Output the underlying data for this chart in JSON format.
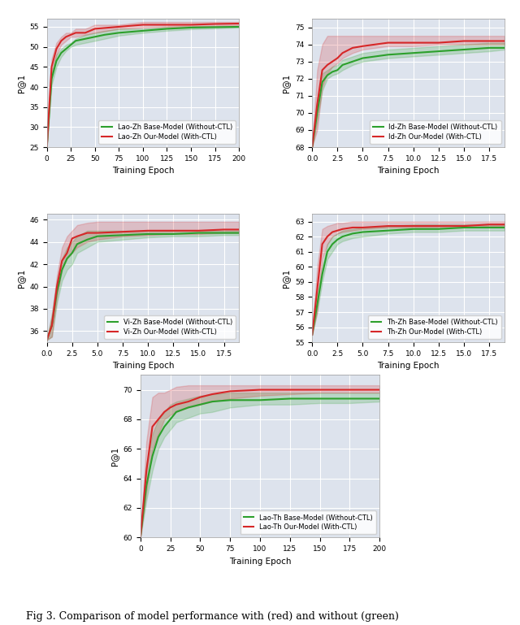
{
  "background_color": "#dde3ed",
  "green_color": "#2ca02c",
  "red_color": "#d62728",
  "fill_alpha": 0.2,
  "line_width": 1.5,
  "caption": "Fig 3. Comparison of model performance with (red) and without (green)",
  "subplots": [
    {
      "xlabel": "Training Epoch",
      "ylabel": "P@1",
      "legend_green": "Lao-Zh Base-Model (Without-CTL)",
      "legend_red": "Lao-Zh Our-Model (With-CTL)",
      "x_max": 200,
      "x_ticks": [
        0,
        25,
        50,
        75,
        100,
        125,
        150,
        175,
        200
      ],
      "ylim": [
        25,
        57
      ],
      "y_ticks": [
        25,
        30,
        35,
        40,
        45,
        50,
        55
      ],
      "green_x": [
        0,
        5,
        10,
        15,
        20,
        25,
        30,
        40,
        50,
        60,
        75,
        100,
        125,
        150,
        175,
        200
      ],
      "green_y": [
        25.0,
        42.0,
        46.5,
        48.5,
        49.5,
        50.5,
        51.5,
        52.0,
        52.5,
        53.0,
        53.5,
        54.0,
        54.5,
        54.8,
        54.9,
        55.0
      ],
      "green_lower": [
        25.0,
        40.5,
        45.0,
        47.5,
        49.0,
        50.0,
        50.5,
        51.0,
        51.5,
        52.0,
        52.8,
        53.5,
        54.0,
        54.4,
        54.6,
        54.8
      ],
      "green_upper": [
        25.0,
        43.5,
        48.0,
        49.5,
        50.5,
        51.0,
        52.0,
        53.0,
        53.5,
        54.0,
        54.5,
        54.5,
        55.0,
        55.2,
        55.2,
        55.2
      ],
      "red_x": [
        0,
        5,
        10,
        15,
        20,
        25,
        30,
        40,
        50,
        75,
        100,
        125,
        150,
        175,
        200
      ],
      "red_y": [
        25.0,
        45.0,
        49.5,
        51.5,
        52.5,
        53.0,
        53.5,
        53.5,
        54.5,
        55.0,
        55.5,
        55.5,
        55.5,
        55.7,
        55.8
      ],
      "red_lower": [
        25.0,
        43.0,
        48.0,
        50.5,
        51.5,
        52.5,
        52.5,
        53.0,
        53.5,
        54.5,
        54.8,
        55.0,
        55.0,
        55.2,
        55.4
      ],
      "red_upper": [
        25.0,
        47.0,
        51.0,
        52.5,
        53.5,
        53.5,
        54.5,
        54.5,
        55.5,
        55.5,
        56.2,
        56.2,
        56.2,
        56.2,
        56.2
      ]
    },
    {
      "xlabel": "Training Epoch",
      "ylabel": "P@1",
      "legend_green": "Id-Zh Base-Model (Without-CTL)",
      "legend_red": "Id-Zh Our-Model (With-CTL)",
      "x_max": 19,
      "x_ticks": [
        0.0,
        2.5,
        5.0,
        7.5,
        10.0,
        12.5,
        15.0,
        17.5
      ],
      "ylim": [
        68,
        75.5
      ],
      "y_ticks": [
        68,
        69,
        70,
        71,
        72,
        73,
        74,
        75
      ],
      "green_x": [
        0,
        0.5,
        1.0,
        1.5,
        2.0,
        2.5,
        3.0,
        4.0,
        5.0,
        7.5,
        10.0,
        12.5,
        15.0,
        17.5,
        19.0
      ],
      "green_y": [
        68.0,
        70.0,
        71.8,
        72.2,
        72.4,
        72.5,
        72.8,
        73.0,
        73.2,
        73.4,
        73.5,
        73.6,
        73.7,
        73.8,
        73.8
      ],
      "green_lower": [
        68.0,
        69.5,
        71.3,
        72.0,
        72.2,
        72.3,
        72.5,
        72.8,
        73.0,
        73.2,
        73.3,
        73.4,
        73.5,
        73.6,
        73.7
      ],
      "green_upper": [
        68.0,
        70.5,
        72.3,
        72.5,
        72.7,
        72.8,
        73.1,
        73.3,
        73.5,
        73.7,
        73.8,
        73.9,
        74.0,
        74.1,
        74.1
      ],
      "red_x": [
        0,
        0.5,
        1.0,
        1.5,
        2.0,
        2.5,
        3.0,
        4.0,
        5.0,
        7.5,
        10.0,
        12.5,
        15.0,
        17.5,
        19.0
      ],
      "red_y": [
        68.0,
        70.5,
        72.5,
        72.8,
        73.0,
        73.2,
        73.5,
        73.8,
        73.9,
        74.1,
        74.1,
        74.1,
        74.2,
        74.2,
        74.2
      ],
      "red_lower": [
        68.0,
        69.0,
        71.5,
        72.3,
        72.7,
        72.9,
        73.2,
        73.5,
        73.7,
        73.9,
        73.9,
        74.0,
        74.0,
        74.0,
        74.0
      ],
      "red_upper": [
        68.0,
        72.5,
        74.0,
        74.5,
        74.5,
        74.5,
        74.5,
        74.5,
        74.5,
        74.5,
        74.5,
        74.5,
        74.5,
        74.5,
        74.5
      ]
    },
    {
      "xlabel": "Training Epoch",
      "ylabel": "P@1",
      "legend_green": "Vi-Zh Base-Model (Without-CTL)",
      "legend_red": "Vi-Zh Our-Model (With-CTL)",
      "x_max": 19,
      "x_ticks": [
        0.0,
        2.5,
        5.0,
        7.5,
        10.0,
        12.5,
        15.0,
        17.5
      ],
      "ylim": [
        35,
        46.5
      ],
      "y_ticks": [
        36,
        38,
        40,
        42,
        44,
        46
      ],
      "green_x": [
        0,
        0.5,
        1.0,
        1.5,
        2.0,
        2.5,
        3.0,
        4.0,
        5.0,
        7.5,
        10.0,
        12.5,
        15.0,
        17.5,
        19.0
      ],
      "green_y": [
        35.2,
        36.5,
        39.5,
        41.5,
        42.5,
        43.0,
        43.8,
        44.2,
        44.5,
        44.6,
        44.7,
        44.7,
        44.8,
        44.8,
        44.8
      ],
      "green_lower": [
        35.2,
        35.5,
        38.5,
        40.5,
        41.5,
        42.0,
        43.0,
        43.5,
        44.0,
        44.2,
        44.4,
        44.5,
        44.5,
        44.6,
        44.6
      ],
      "green_upper": [
        35.2,
        37.5,
        40.5,
        42.5,
        43.5,
        44.0,
        44.5,
        45.0,
        45.0,
        45.0,
        45.0,
        45.0,
        45.0,
        45.0,
        45.0
      ],
      "red_x": [
        0,
        0.5,
        1.0,
        1.5,
        2.0,
        2.5,
        3.0,
        4.0,
        5.0,
        7.5,
        10.0,
        12.5,
        15.0,
        17.5,
        19.0
      ],
      "red_y": [
        35.2,
        36.5,
        40.0,
        42.3,
        43.0,
        44.3,
        44.5,
        44.8,
        44.8,
        44.9,
        45.0,
        45.0,
        45.0,
        45.1,
        45.1
      ],
      "red_lower": [
        35.2,
        35.5,
        39.0,
        41.5,
        42.5,
        43.0,
        43.5,
        44.0,
        44.2,
        44.5,
        44.6,
        44.7,
        44.7,
        44.8,
        44.8
      ],
      "red_upper": [
        35.2,
        37.5,
        41.0,
        43.5,
        44.5,
        45.0,
        45.5,
        45.7,
        45.8,
        45.8,
        45.8,
        45.8,
        45.8,
        45.8,
        45.8
      ]
    },
    {
      "xlabel": "Training Epoch",
      "ylabel": "P@1",
      "legend_green": "Th-Zh Base-Model (Without-CTL)",
      "legend_red": "Th-Zh Our-Model (With-CTL)",
      "x_max": 19,
      "x_ticks": [
        0.0,
        2.5,
        5.0,
        7.5,
        10.0,
        12.5,
        15.0,
        17.5
      ],
      "ylim": [
        55,
        63.5
      ],
      "y_ticks": [
        55,
        56,
        57,
        58,
        59,
        60,
        61,
        62,
        63
      ],
      "green_x": [
        0,
        0.5,
        1.0,
        1.5,
        2.0,
        2.5,
        3.0,
        4.0,
        5.0,
        7.5,
        10.0,
        12.5,
        15.0,
        17.5,
        19.0
      ],
      "green_y": [
        55.5,
        57.5,
        59.5,
        61.0,
        61.5,
        61.8,
        62.0,
        62.2,
        62.3,
        62.4,
        62.5,
        62.5,
        62.6,
        62.6,
        62.6
      ],
      "green_lower": [
        55.5,
        57.0,
        59.0,
        60.5,
        61.0,
        61.5,
        61.7,
        61.9,
        62.0,
        62.2,
        62.3,
        62.3,
        62.4,
        62.4,
        62.4
      ],
      "green_upper": [
        55.5,
        58.0,
        60.0,
        61.5,
        62.0,
        62.2,
        62.4,
        62.5,
        62.6,
        62.7,
        62.8,
        62.8,
        62.8,
        62.8,
        62.8
      ],
      "red_x": [
        0,
        0.5,
        1.0,
        1.5,
        2.0,
        2.5,
        3.0,
        4.0,
        5.0,
        7.5,
        10.0,
        12.5,
        15.0,
        17.5,
        19.0
      ],
      "red_y": [
        55.5,
        58.5,
        61.5,
        62.0,
        62.3,
        62.4,
        62.5,
        62.6,
        62.6,
        62.7,
        62.7,
        62.7,
        62.7,
        62.8,
        62.8
      ],
      "red_lower": [
        55.5,
        57.0,
        60.5,
        61.5,
        62.0,
        62.2,
        62.3,
        62.4,
        62.5,
        62.6,
        62.6,
        62.6,
        62.6,
        62.7,
        62.7
      ],
      "red_upper": [
        55.5,
        60.0,
        62.5,
        62.7,
        62.8,
        62.9,
        62.9,
        63.0,
        63.0,
        63.0,
        63.0,
        63.0,
        63.0,
        63.0,
        63.0
      ]
    },
    {
      "xlabel": "Training Epoch",
      "ylabel": "P@1",
      "legend_green": "Lao-Th Base-Model (Without-CTL)",
      "legend_red": "Lao-Th Our-Model (With-CTL)",
      "x_max": 200,
      "x_ticks": [
        0,
        25,
        50,
        75,
        100,
        125,
        150,
        175,
        200
      ],
      "ylim": [
        60,
        71
      ],
      "y_ticks": [
        60,
        62,
        64,
        66,
        68,
        70
      ],
      "green_x": [
        0,
        5,
        10,
        15,
        20,
        25,
        30,
        40,
        50,
        60,
        75,
        100,
        125,
        150,
        175,
        200
      ],
      "green_y": [
        60.0,
        63.5,
        65.5,
        66.8,
        67.5,
        68.0,
        68.5,
        68.8,
        69.0,
        69.2,
        69.3,
        69.3,
        69.4,
        69.4,
        69.4,
        69.4
      ],
      "green_lower": [
        60.0,
        62.5,
        64.5,
        66.0,
        66.8,
        67.3,
        67.8,
        68.1,
        68.4,
        68.5,
        68.8,
        69.0,
        69.0,
        69.1,
        69.1,
        69.2
      ],
      "green_upper": [
        60.0,
        65.0,
        67.0,
        68.0,
        68.5,
        69.0,
        69.2,
        69.4,
        69.6,
        69.7,
        69.8,
        69.8,
        69.8,
        69.8,
        69.8,
        69.8
      ],
      "red_x": [
        0,
        5,
        10,
        15,
        20,
        25,
        30,
        40,
        50,
        60,
        75,
        100,
        125,
        150,
        175,
        200
      ],
      "red_y": [
        60.0,
        64.5,
        67.5,
        68.0,
        68.5,
        68.8,
        69.0,
        69.2,
        69.5,
        69.7,
        69.9,
        70.0,
        70.0,
        70.0,
        70.0,
        70.0
      ],
      "red_lower": [
        60.0,
        63.0,
        66.0,
        67.0,
        68.0,
        68.3,
        68.5,
        68.8,
        69.0,
        69.2,
        69.4,
        69.6,
        69.7,
        69.8,
        69.8,
        69.8
      ],
      "red_upper": [
        60.0,
        66.5,
        69.5,
        69.8,
        69.8,
        70.0,
        70.2,
        70.3,
        70.3,
        70.3,
        70.3,
        70.3,
        70.3,
        70.3,
        70.3,
        70.3
      ]
    }
  ]
}
